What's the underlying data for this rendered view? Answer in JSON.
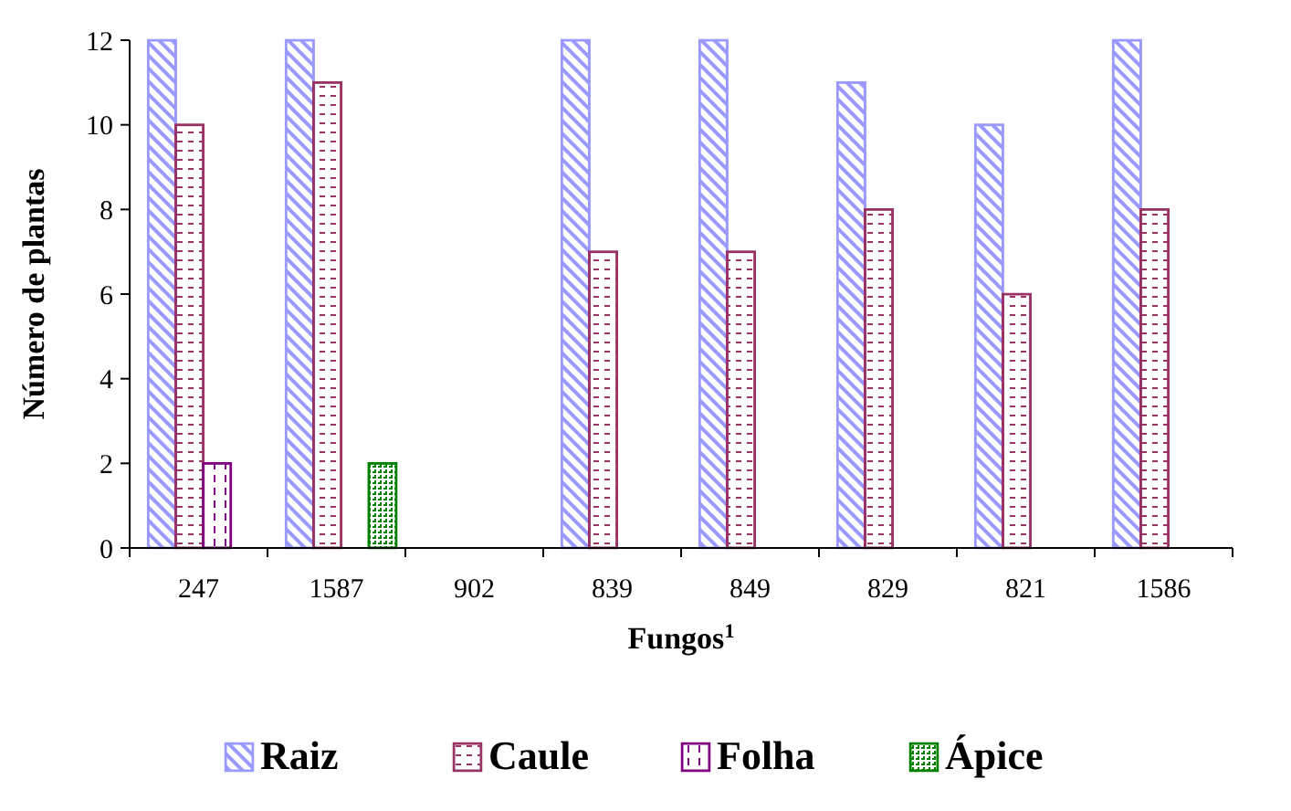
{
  "chart_data": {
    "type": "bar",
    "xlabel": "Fungos$^{1}$",
    "ylabel": "Número de plantas",
    "categories": [
      "247",
      "1587",
      "902",
      "839",
      "849",
      "829",
      "821",
      "1586"
    ],
    "series": [
      {
        "name": "Raiz",
        "color": "#9999ff",
        "values": [
          12,
          12,
          0,
          12,
          12,
          11,
          10,
          12
        ]
      },
      {
        "name": "Caule",
        "color": "#993366",
        "values": [
          10,
          11,
          0,
          7,
          7,
          8,
          6,
          8
        ]
      },
      {
        "name": "Folha",
        "color": "#800080",
        "values": [
          2,
          0,
          0,
          0,
          0,
          0,
          0,
          0
        ]
      },
      {
        "name": "Ápice",
        "color": "#008000",
        "values": [
          0,
          2,
          0,
          0,
          0,
          0,
          0,
          0
        ]
      }
    ],
    "ylim": [
      0,
      12
    ],
    "yticks": [
      0,
      2,
      4,
      6,
      8,
      10,
      12
    ],
    "grid": false,
    "legend": "bottom"
  }
}
